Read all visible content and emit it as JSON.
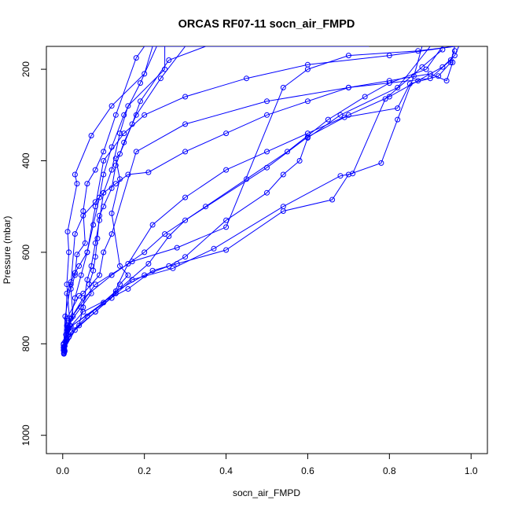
{
  "chart_data": {
    "type": "line",
    "title": "ORCAS RF07-11 socn_air_FMPD",
    "xlabel": "socn_air_FMPD",
    "ylabel": "Pressure (mbar)",
    "xlim": [
      -0.04,
      1.04
    ],
    "ylim": [
      1040,
      150
    ],
    "y_reversed": true,
    "grid": false,
    "legend": "none",
    "color": "#0000ff",
    "marker": "open-circle",
    "x_ticks": [
      {
        "value": 0.0,
        "label": "0.0"
      },
      {
        "value": 0.2,
        "label": "0.2"
      },
      {
        "value": 0.4,
        "label": "0.4"
      },
      {
        "value": 0.6,
        "label": "0.6"
      },
      {
        "value": 0.8,
        "label": "0.8"
      },
      {
        "value": 1.0,
        "label": "1.0"
      }
    ],
    "y_ticks": [
      {
        "value": 200,
        "label": "200"
      },
      {
        "value": 400,
        "label": "400"
      },
      {
        "value": 600,
        "label": "600"
      },
      {
        "value": 800,
        "label": "800"
      },
      {
        "value": 1000,
        "label": "1000"
      }
    ],
    "series": [
      {
        "points": [
          [
            0.003,
            820
          ],
          [
            0.006,
            795
          ],
          [
            0.012,
            770
          ],
          [
            0.02,
            745
          ],
          [
            0.03,
            700
          ],
          [
            0.045,
            650
          ],
          [
            0.06,
            600
          ],
          [
            0.075,
            540
          ],
          [
            0.09,
            480
          ],
          [
            0.1,
            430
          ],
          [
            0.12,
            370
          ],
          [
            0.15,
            300
          ],
          [
            0.19,
            230
          ],
          [
            0.23,
            150
          ],
          [
            0.55,
            150
          ]
        ]
      },
      {
        "points": [
          [
            0.004,
            815
          ],
          [
            0.01,
            790
          ],
          [
            0.018,
            760
          ],
          [
            0.01,
            670
          ],
          [
            0.015,
            600
          ],
          [
            0.012,
            555
          ],
          [
            0.035,
            450
          ],
          [
            0.03,
            430
          ],
          [
            0.07,
            345
          ],
          [
            0.12,
            280
          ],
          [
            0.2,
            210
          ],
          [
            0.22,
            150
          ],
          [
            0.6,
            150
          ]
        ]
      },
      {
        "points": [
          [
            0.003,
            810
          ],
          [
            0.008,
            780
          ],
          [
            0.025,
            740
          ],
          [
            0.02,
            680
          ],
          [
            0.03,
            650
          ],
          [
            0.035,
            605
          ],
          [
            0.055,
            580
          ],
          [
            0.05,
            510
          ],
          [
            0.06,
            450
          ],
          [
            0.08,
            420
          ],
          [
            0.1,
            380
          ],
          [
            0.13,
            300
          ],
          [
            0.18,
            175
          ],
          [
            0.2,
            150
          ],
          [
            0.65,
            150
          ]
        ]
      },
      {
        "points": [
          [
            0.005,
            805
          ],
          [
            0.015,
            785
          ],
          [
            0.04,
            760
          ],
          [
            0.05,
            720
          ],
          [
            0.06,
            660
          ],
          [
            0.07,
            630
          ],
          [
            0.08,
            580
          ],
          [
            0.09,
            530
          ],
          [
            0.1,
            470
          ],
          [
            0.12,
            420
          ],
          [
            0.14,
            340
          ],
          [
            0.16,
            280
          ],
          [
            0.25,
            200
          ],
          [
            0.25,
            150
          ],
          [
            0.7,
            150
          ]
        ]
      },
      {
        "points": [
          [
            0.002,
            800
          ],
          [
            0.012,
            760
          ],
          [
            0.045,
            720
          ],
          [
            0.07,
            690
          ],
          [
            0.065,
            670
          ],
          [
            0.075,
            640
          ],
          [
            0.08,
            610
          ],
          [
            0.085,
            570
          ],
          [
            0.09,
            520
          ],
          [
            0.1,
            500
          ],
          [
            0.12,
            460
          ],
          [
            0.13,
            410
          ],
          [
            0.15,
            360
          ],
          [
            0.18,
            300
          ],
          [
            0.24,
            220
          ],
          [
            0.3,
            150
          ],
          [
            0.75,
            150
          ]
        ]
      },
      {
        "points": [
          [
            0.004,
            812
          ],
          [
            0.03,
            770
          ],
          [
            0.08,
            730
          ],
          [
            0.13,
            690
          ],
          [
            0.14,
            670
          ],
          [
            0.16,
            650
          ],
          [
            0.14,
            630
          ],
          [
            0.12,
            515
          ],
          [
            0.14,
            440
          ],
          [
            0.13,
            395
          ],
          [
            0.14,
            385
          ],
          [
            0.17,
            320
          ],
          [
            0.19,
            270
          ],
          [
            0.26,
            180
          ],
          [
            0.35,
            150
          ]
        ]
      },
      {
        "points": [
          [
            0.003,
            822
          ],
          [
            0.015,
            780
          ],
          [
            0.06,
            740
          ],
          [
            0.13,
            685
          ],
          [
            0.2,
            650
          ],
          [
            0.26,
            630
          ],
          [
            0.3,
            610
          ],
          [
            0.4,
            530
          ],
          [
            0.5,
            470
          ],
          [
            0.54,
            430
          ],
          [
            0.58,
            400
          ],
          [
            0.6,
            350
          ],
          [
            0.68,
            300
          ],
          [
            0.82,
            240
          ],
          [
            0.9,
            150
          ]
        ]
      },
      {
        "points": [
          [
            0.003,
            808
          ],
          [
            0.012,
            770
          ],
          [
            0.05,
            730
          ],
          [
            0.16,
            680
          ],
          [
            0.22,
            640
          ],
          [
            0.28,
            625
          ],
          [
            0.4,
            595
          ],
          [
            0.54,
            510
          ],
          [
            0.66,
            485
          ],
          [
            0.7,
            430
          ],
          [
            0.78,
            405
          ],
          [
            0.82,
            310
          ],
          [
            0.86,
            215
          ],
          [
            0.88,
            150
          ]
        ]
      },
      {
        "points": [
          [
            0.004,
            818
          ],
          [
            0.02,
            775
          ],
          [
            0.08,
            730
          ],
          [
            0.17,
            660
          ],
          [
            0.27,
            635
          ],
          [
            0.37,
            592
          ],
          [
            0.54,
            500
          ],
          [
            0.68,
            433
          ],
          [
            0.71,
            428
          ],
          [
            0.79,
            265
          ],
          [
            0.88,
            195
          ],
          [
            0.93,
            157
          ]
        ]
      },
      {
        "points": [
          [
            0.002,
            802
          ],
          [
            0.016,
            765
          ],
          [
            0.1,
            710
          ],
          [
            0.21,
            625
          ],
          [
            0.26,
            565
          ],
          [
            0.3,
            530
          ],
          [
            0.5,
            415
          ],
          [
            0.6,
            348
          ],
          [
            0.69,
            305
          ],
          [
            0.82,
            285
          ],
          [
            0.85,
            232
          ],
          [
            0.92,
            215
          ],
          [
            0.95,
            185
          ],
          [
            0.96,
            150
          ]
        ]
      },
      {
        "points": [
          [
            0.003,
            806
          ],
          [
            0.02,
            762
          ],
          [
            0.12,
            700
          ],
          [
            0.16,
            625
          ],
          [
            0.22,
            540
          ],
          [
            0.3,
            480
          ],
          [
            0.4,
            420
          ],
          [
            0.5,
            380
          ],
          [
            0.6,
            340
          ],
          [
            0.7,
            300
          ],
          [
            0.8,
            260
          ],
          [
            0.87,
            225
          ],
          [
            0.93,
            195
          ],
          [
            0.96,
            170
          ],
          [
            0.97,
            150
          ]
        ]
      },
      {
        "points": [
          [
            0.005,
            816
          ],
          [
            0.01,
            690
          ],
          [
            0.02,
            665
          ],
          [
            0.03,
            645
          ],
          [
            0.04,
            630
          ],
          [
            0.06,
            600
          ],
          [
            0.08,
            500
          ],
          [
            0.1,
            400
          ],
          [
            0.15,
            340
          ],
          [
            0.2,
            300
          ],
          [
            0.3,
            260
          ],
          [
            0.45,
            220
          ],
          [
            0.6,
            190
          ],
          [
            0.8,
            170
          ],
          [
            0.96,
            150
          ]
        ]
      },
      {
        "points": [
          [
            0.003,
            812
          ],
          [
            0.01,
            745
          ],
          [
            0.04,
            695
          ],
          [
            0.05,
            690
          ],
          [
            0.09,
            650
          ],
          [
            0.1,
            600
          ],
          [
            0.12,
            560
          ],
          [
            0.18,
            380
          ],
          [
            0.3,
            320
          ],
          [
            0.5,
            270
          ],
          [
            0.7,
            240
          ],
          [
            0.9,
            220
          ],
          [
            0.95,
            180
          ],
          [
            0.96,
            160
          ]
        ]
      },
      {
        "points": [
          [
            0.002,
            814
          ],
          [
            0.006,
            740
          ],
          [
            0.02,
            670
          ],
          [
            0.03,
            560
          ],
          [
            0.05,
            520
          ],
          [
            0.08,
            490
          ],
          [
            0.1,
            470
          ],
          [
            0.13,
            450
          ],
          [
            0.16,
            430
          ],
          [
            0.21,
            425
          ],
          [
            0.3,
            380
          ],
          [
            0.4,
            340
          ],
          [
            0.5,
            300
          ],
          [
            0.6,
            270
          ],
          [
            0.7,
            240
          ],
          [
            0.8,
            225
          ],
          [
            0.9,
            210
          ],
          [
            0.94,
            225
          ],
          [
            0.955,
            185
          ]
        ]
      },
      {
        "points": [
          [
            0.003,
            820
          ],
          [
            0.01,
            760
          ],
          [
            0.05,
            700
          ],
          [
            0.12,
            650
          ],
          [
            0.2,
            600
          ],
          [
            0.25,
            560
          ],
          [
            0.35,
            500
          ],
          [
            0.45,
            440
          ],
          [
            0.55,
            380
          ],
          [
            0.65,
            310
          ],
          [
            0.74,
            260
          ],
          [
            0.8,
            230
          ],
          [
            0.89,
            200
          ],
          [
            0.93,
            150
          ]
        ]
      },
      {
        "points": [
          [
            0.002,
            808
          ],
          [
            0.015,
            750
          ],
          [
            0.08,
            670
          ],
          [
            0.17,
            620
          ],
          [
            0.28,
            590
          ],
          [
            0.4,
            545
          ],
          [
            0.54,
            240
          ],
          [
            0.6,
            200
          ],
          [
            0.7,
            170
          ],
          [
            0.87,
            160
          ],
          [
            0.96,
            150
          ]
        ]
      }
    ]
  }
}
